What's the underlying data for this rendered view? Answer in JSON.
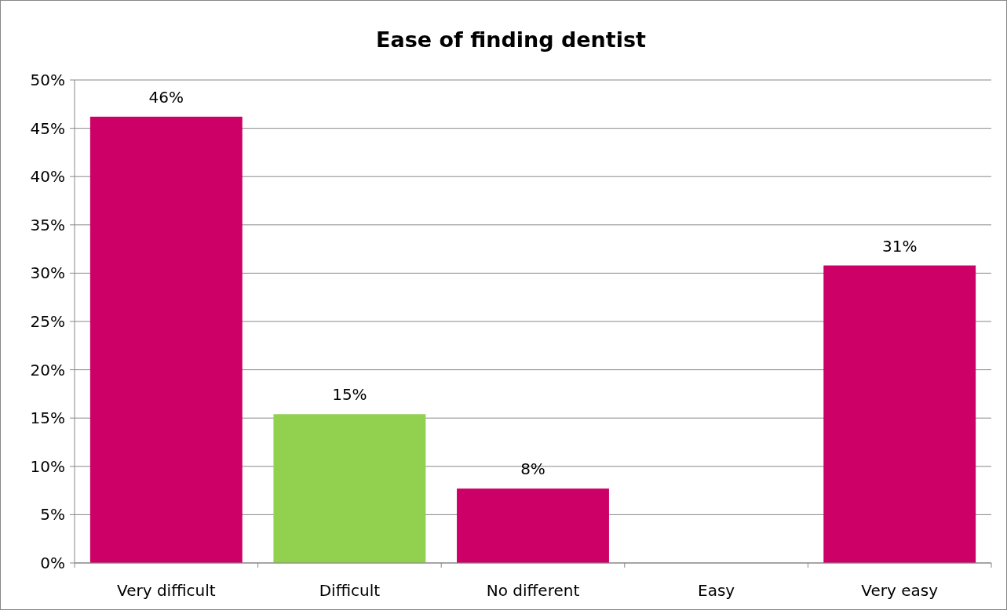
{
  "chart_data": {
    "type": "bar",
    "title": "Ease of finding dentist",
    "categories": [
      "Very difficult",
      "Difficult",
      "No different",
      "Easy",
      "Very easy"
    ],
    "values": [
      46.2,
      15.4,
      7.7,
      0,
      30.8
    ],
    "colors": [
      "#cc0066",
      "#92d050",
      "#cc0066",
      "#cc0066",
      "#cc0066"
    ],
    "value_labels": [
      "46%",
      "15%",
      "8%",
      null,
      "31%"
    ],
    "ylim": [
      0,
      50
    ],
    "yticks": [
      {
        "value": 0,
        "label": "0%"
      },
      {
        "value": 5,
        "label": "5%"
      },
      {
        "value": 10,
        "label": "10%"
      },
      {
        "value": 15,
        "label": "15%"
      },
      {
        "value": 20,
        "label": "20%"
      },
      {
        "value": 25,
        "label": "25%"
      },
      {
        "value": 30,
        "label": "30%"
      },
      {
        "value": 35,
        "label": "35%"
      },
      {
        "value": 40,
        "label": "40%"
      },
      {
        "value": 45,
        "label": "45%"
      },
      {
        "value": 50,
        "label": "50%"
      }
    ],
    "grid": "y"
  }
}
